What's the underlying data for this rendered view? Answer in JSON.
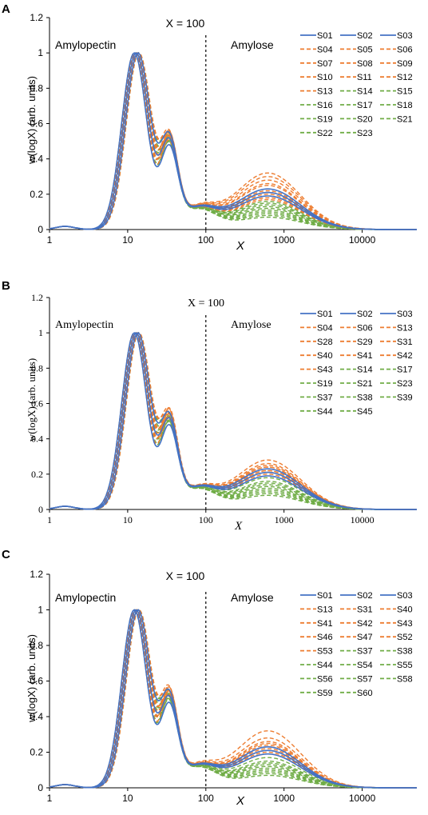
{
  "colors": {
    "blue": "#4472c4",
    "orange": "#ed7d31",
    "green": "#70ad47",
    "axis": "#000000"
  },
  "chart_data": [
    {
      "type": "line",
      "panel_label": "A",
      "ylabel": "w(logX) (arb. units)",
      "xlabel": "X",
      "x_scale": "log",
      "xlim": [
        1,
        50000
      ],
      "ylim": [
        0,
        1.2
      ],
      "x_ticks": [
        "1",
        "10",
        "100",
        "1000",
        "10000"
      ],
      "y_ticks": [
        "0",
        "0.2",
        "0.4",
        "0.6",
        "0.8",
        "1",
        "1.2"
      ],
      "annotation_line": "X = 100",
      "region_left": "Amylopectin",
      "region_right": "Amylose",
      "legend": [
        "S01",
        "S02",
        "S03",
        "S04",
        "S05",
        "S06",
        "S07",
        "S08",
        "S09",
        "S10",
        "S11",
        "S12",
        "S13",
        "S14",
        "S15",
        "S16",
        "S17",
        "S18",
        "S19",
        "S20",
        "S21",
        "S22",
        "S23"
      ],
      "series_colors": [
        "blue",
        "blue",
        "blue",
        "orange",
        "orange",
        "orange",
        "orange",
        "orange",
        "orange",
        "orange",
        "orange",
        "orange",
        "orange",
        "green",
        "green",
        "green",
        "green",
        "green",
        "green",
        "green",
        "green",
        "green",
        "green"
      ],
      "amylose_peak_values": [
        0.19,
        0.21,
        0.23,
        0.26,
        0.28,
        0.3,
        0.32,
        0.25,
        0.22,
        0.21,
        0.2,
        0.18,
        0.17,
        0.16,
        0.15,
        0.14,
        0.13,
        0.12,
        0.11,
        0.1,
        0.09,
        0.08,
        0.07
      ],
      "amylopectin_peak_x": 13,
      "amylopectin_shoulder_values": [
        0.47,
        0.5,
        0.52,
        0.55,
        0.54,
        0.53,
        0.52,
        0.51,
        0.5,
        0.49,
        0.5,
        0.51,
        0.52,
        0.48,
        0.49,
        0.5,
        0.51,
        0.52,
        0.5,
        0.49,
        0.48,
        0.47,
        0.5
      ]
    },
    {
      "type": "line",
      "panel_label": "B",
      "ylabel": "w(logX) (arb. units)",
      "xlabel": "X",
      "x_scale": "log",
      "xlim": [
        1,
        50000
      ],
      "ylim": [
        0,
        1.2
      ],
      "x_ticks": [
        "1",
        "10",
        "100",
        "1000",
        "10000"
      ],
      "y_ticks": [
        "0",
        "0.2",
        "0.4",
        "0.6",
        "0.8",
        "1",
        "1.2"
      ],
      "annotation_line": "X = 100",
      "region_left": "Amylopectin",
      "region_right": "Amylose",
      "legend": [
        "S01",
        "S02",
        "S03",
        "S04",
        "S06",
        "S13",
        "S28",
        "S29",
        "S31",
        "S40",
        "S41",
        "S42",
        "S43",
        "S14",
        "S17",
        "S19",
        "S21",
        "S23",
        "S37",
        "S38",
        "S39",
        "S44",
        "S45"
      ],
      "series_colors": [
        "blue",
        "blue",
        "blue",
        "orange",
        "orange",
        "orange",
        "orange",
        "orange",
        "orange",
        "orange",
        "orange",
        "orange",
        "orange",
        "green",
        "green",
        "green",
        "green",
        "green",
        "green",
        "green",
        "green",
        "green",
        "green"
      ],
      "amylose_peak_values": [
        0.19,
        0.21,
        0.23,
        0.28,
        0.26,
        0.24,
        0.22,
        0.25,
        0.23,
        0.21,
        0.24,
        0.2,
        0.22,
        0.18,
        0.16,
        0.15,
        0.14,
        0.13,
        0.12,
        0.11,
        0.1,
        0.09,
        0.08
      ],
      "amylopectin_peak_x": 13,
      "amylopectin_shoulder_values": [
        0.47,
        0.5,
        0.52,
        0.57,
        0.55,
        0.54,
        0.53,
        0.52,
        0.51,
        0.5,
        0.49,
        0.52,
        0.53,
        0.48,
        0.49,
        0.5,
        0.51,
        0.52,
        0.5,
        0.49,
        0.48,
        0.47,
        0.5
      ]
    },
    {
      "type": "line",
      "panel_label": "C",
      "ylabel": "w(logX) (arb. units)",
      "xlabel": "X",
      "x_scale": "log",
      "xlim": [
        1,
        50000
      ],
      "ylim": [
        0,
        1.2
      ],
      "x_ticks": [
        "1",
        "10",
        "100",
        "1000",
        "10000"
      ],
      "y_ticks": [
        "0",
        "0.2",
        "0.4",
        "0.6",
        "0.8",
        "1",
        "1.2"
      ],
      "annotation_line": "X = 100",
      "region_left": "Amylopectin",
      "region_right": "Amylose",
      "legend": [
        "S01",
        "S02",
        "S03",
        "S13",
        "S31",
        "S40",
        "S41",
        "S42",
        "S43",
        "S46",
        "S47",
        "S52",
        "S53",
        "S37",
        "S38",
        "S44",
        "S54",
        "S55",
        "S56",
        "S57",
        "S58",
        "S59",
        "S60"
      ],
      "series_colors": [
        "blue",
        "blue",
        "blue",
        "orange",
        "orange",
        "orange",
        "orange",
        "orange",
        "orange",
        "orange",
        "orange",
        "orange",
        "orange",
        "green",
        "green",
        "green",
        "green",
        "green",
        "green",
        "green",
        "green",
        "green",
        "green"
      ],
      "amylose_peak_values": [
        0.19,
        0.21,
        0.23,
        0.32,
        0.28,
        0.26,
        0.24,
        0.22,
        0.2,
        0.25,
        0.23,
        0.21,
        0.19,
        0.17,
        0.15,
        0.14,
        0.13,
        0.12,
        0.11,
        0.1,
        0.09,
        0.08,
        0.07
      ],
      "amylopectin_peak_x": 13,
      "amylopectin_shoulder_values": [
        0.47,
        0.5,
        0.52,
        0.56,
        0.55,
        0.54,
        0.53,
        0.52,
        0.51,
        0.5,
        0.49,
        0.52,
        0.53,
        0.48,
        0.49,
        0.5,
        0.51,
        0.52,
        0.5,
        0.49,
        0.48,
        0.47,
        0.5
      ]
    }
  ]
}
